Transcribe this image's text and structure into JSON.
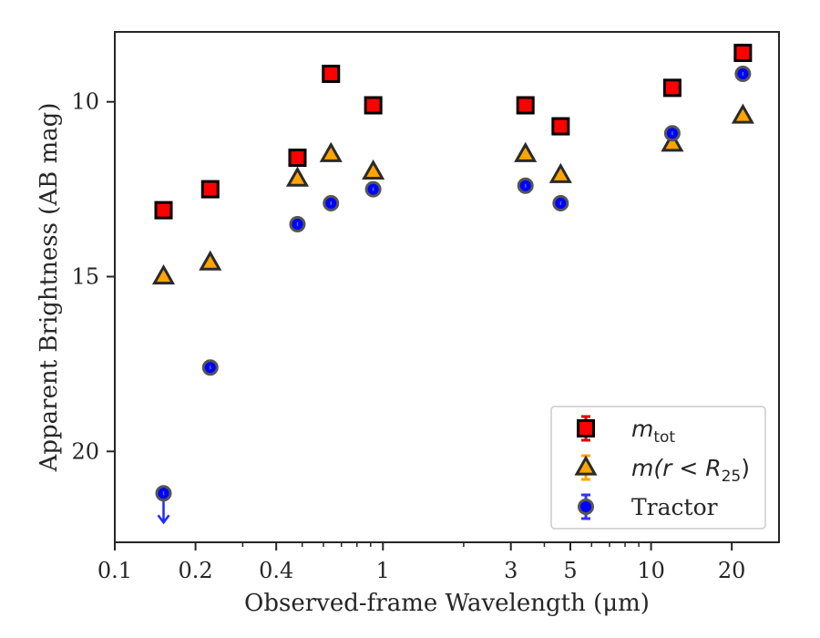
{
  "chart_data": {
    "type": "scatter",
    "title": "",
    "xlabel": "Observed-frame Wavelength (μm)",
    "ylabel": "Apparent Brightness (AB mag)",
    "xscale": "log",
    "xlim": [
      0.1,
      30
    ],
    "ylim": [
      22.6,
      8.0
    ],
    "y_inverted": true,
    "xticks": [
      0.1,
      0.2,
      0.4,
      1,
      3,
      5,
      10,
      20
    ],
    "xtick_labels": [
      "0.1",
      "0.2",
      "0.4",
      "1",
      "3",
      "5",
      "10",
      "20"
    ],
    "yticks": [
      10,
      15,
      20
    ],
    "ytick_labels": [
      "10",
      "15",
      "20"
    ],
    "grid": false,
    "legend_position": "lower-right",
    "series": [
      {
        "name": "m_tot",
        "legend_main": "m",
        "legend_sub": "tot",
        "marker": "square",
        "color": "#ff0000",
        "x": [
          0.152,
          0.227,
          0.48,
          0.64,
          0.92,
          3.4,
          4.6,
          12.0,
          22.0
        ],
        "y": [
          13.1,
          12.5,
          11.6,
          9.2,
          10.1,
          10.1,
          10.7,
          9.6,
          8.6
        ]
      },
      {
        "name": "m(r < R_25)",
        "legend_main": "m(r < R",
        "legend_sub": "25",
        "legend_tail": ")",
        "marker": "triangle",
        "color": "#ffa500",
        "x": [
          0.152,
          0.227,
          0.48,
          0.64,
          0.92,
          3.4,
          4.6,
          12.0,
          22.0
        ],
        "y": [
          15.0,
          14.6,
          12.2,
          11.5,
          12.0,
          11.5,
          12.1,
          11.2,
          10.4
        ]
      },
      {
        "name": "Tractor",
        "marker": "circle",
        "color": "#0000ff",
        "x": [
          0.152,
          0.227,
          0.48,
          0.64,
          0.92,
          3.4,
          4.6,
          12.0,
          22.0
        ],
        "y": [
          21.2,
          17.6,
          13.5,
          12.9,
          12.5,
          12.4,
          12.9,
          10.9,
          9.2
        ],
        "upper_limit_index": 0
      }
    ]
  }
}
